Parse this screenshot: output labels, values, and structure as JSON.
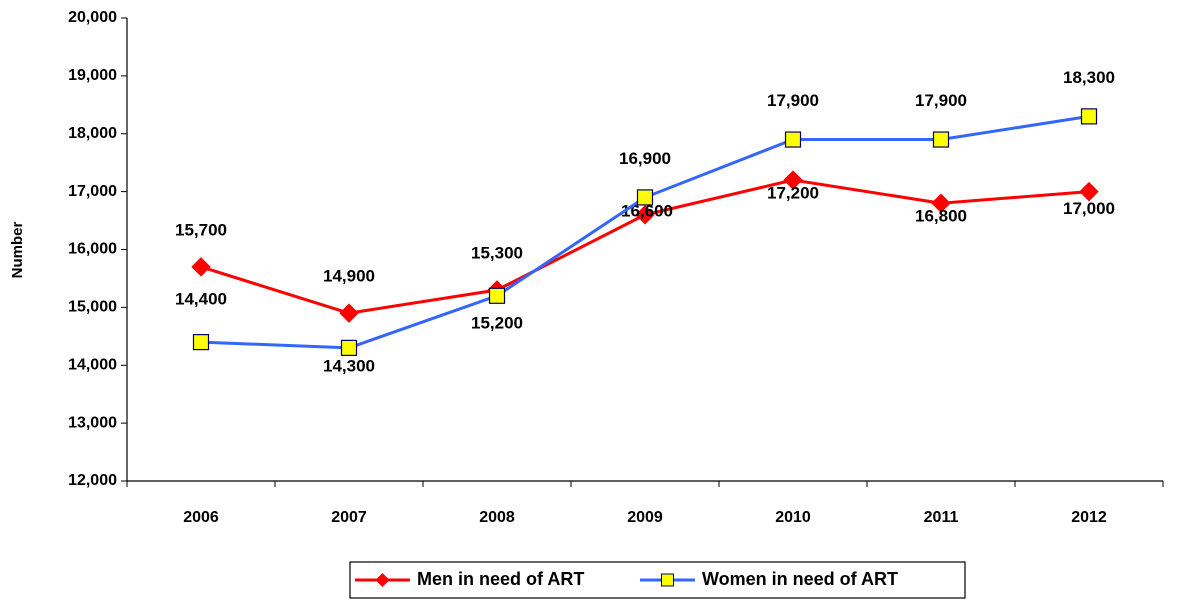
{
  "chart_data": {
    "type": "line",
    "y_label": "Number",
    "categories": [
      "2006",
      "2007",
      "2008",
      "2009",
      "2010",
      "2011",
      "2012"
    ],
    "series": [
      {
        "name": "Men in need of ART",
        "color": "#ff0000",
        "marker_color": "#ff0000",
        "values": [
          15700,
          14900,
          15300,
          16600,
          17200,
          16800,
          17000
        ],
        "value_labels": [
          "15,700",
          "14,900",
          "15,300",
          "16,600",
          "17,200",
          "16,800",
          "17,000"
        ]
      },
      {
        "name": "Women in need of ART",
        "color": "#3366ff",
        "marker_color": "#ffff00",
        "values": [
          14400,
          14300,
          15200,
          16900,
          17900,
          17900,
          18300
        ],
        "value_labels": [
          "14,400",
          "14,300",
          "15,200",
          "16,900",
          "17,900",
          "17,900",
          "18,300"
        ]
      }
    ],
    "ylim": [
      12000,
      20000
    ],
    "yticks": [
      {
        "value": 12000,
        "label": "12,000"
      },
      {
        "value": 13000,
        "label": "13,000"
      },
      {
        "value": 14000,
        "label": "14,000"
      },
      {
        "value": 15000,
        "label": "15,000"
      },
      {
        "value": 16000,
        "label": "16,000"
      },
      {
        "value": 17000,
        "label": "17,000"
      },
      {
        "value": 18000,
        "label": "18,000"
      },
      {
        "value": 19000,
        "label": "19,000"
      },
      {
        "value": 20000,
        "label": "20,000"
      }
    ],
    "grid": false,
    "legend": "bottom"
  }
}
